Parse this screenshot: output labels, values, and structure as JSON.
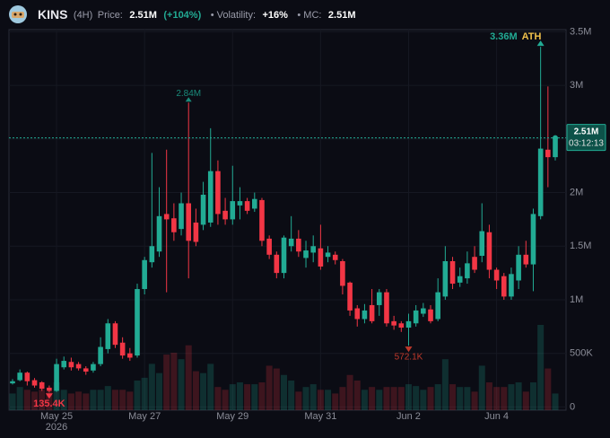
{
  "chart_data": {
    "type": "candlestick",
    "title": "KINS",
    "interval": "(4H)",
    "price_label": "Price:",
    "price": "2.51M",
    "change": "(+104%)",
    "volatility_label": "• Volatility:",
    "volatility": "+16%",
    "mc_label": "• MC:",
    "mc": "2.51M",
    "categories": [
      null,
      null,
      null,
      null,
      null,
      null,
      "May 25",
      null,
      null,
      null,
      null,
      null,
      null,
      null,
      null,
      null,
      null,
      null,
      "May 27",
      null,
      null,
      null,
      null,
      null,
      null,
      null,
      null,
      null,
      null,
      null,
      "May 29",
      null,
      null,
      null,
      null,
      null,
      null,
      null,
      null,
      null,
      null,
      null,
      "May 31",
      null,
      null,
      null,
      null,
      null,
      null,
      null,
      null,
      null,
      null,
      null,
      "Jun 2",
      null,
      null,
      null,
      null,
      null,
      null,
      null,
      null,
      null,
      null,
      null,
      "Jun 4",
      null,
      null,
      null,
      null,
      null,
      null,
      null,
      null
    ],
    "year_label": "2026",
    "open": [
      220000,
      250000,
      320000,
      250000,
      230000,
      180000,
      150000,
      370000,
      420000,
      400000,
      360000,
      340000,
      400000,
      540000,
      780000,
      600000,
      500000,
      480000,
      1100000,
      1350000,
      1450000,
      1800000,
      1760000,
      1660000,
      1900000,
      1720000,
      1700000,
      1720000,
      2200000,
      1830000,
      1750000,
      1880000,
      1920000,
      1850000,
      1930000,
      1570000,
      1420000,
      1250000,
      1500000,
      1570000,
      1390000,
      1440000,
      1480000,
      1400000,
      1420000,
      1360000,
      1160000,
      920000,
      820000,
      950000,
      950000,
      1070000,
      800000,
      780000,
      740000,
      780000,
      870000,
      910000,
      820000,
      1030000,
      1360000,
      1160000,
      1200000,
      1400000,
      1410000,
      1630000,
      1280000,
      1220000,
      1030000,
      1180000,
      1420000,
      1330000,
      1780000,
      2400000,
      2330000
    ],
    "high": [
      260000,
      350000,
      330000,
      270000,
      240000,
      200000,
      450000,
      470000,
      460000,
      420000,
      380000,
      420000,
      650000,
      820000,
      800000,
      650000,
      550000,
      1150000,
      1400000,
      2370000,
      2050000,
      2400000,
      1900000,
      2000000,
      2840000,
      1850000,
      2100000,
      2600000,
      2300000,
      1950000,
      2250000,
      2050000,
      1950000,
      2000000,
      1950000,
      1600000,
      1450000,
      1600000,
      1780000,
      1650000,
      1550000,
      1600000,
      1700000,
      1500000,
      1450000,
      1380000,
      1170000,
      950000,
      960000,
      1100000,
      1100000,
      1100000,
      850000,
      800000,
      870000,
      950000,
      970000,
      950000,
      1200000,
      1500000,
      1400000,
      1300000,
      1450000,
      1500000,
      1900000,
      1700000,
      1300000,
      1250000,
      1300000,
      1500000,
      1550000,
      1850000,
      3360000,
      2990000,
      2530000
    ],
    "low": [
      210000,
      240000,
      200000,
      180000,
      150000,
      135400,
      140000,
      350000,
      340000,
      340000,
      300000,
      320000,
      380000,
      500000,
      550000,
      450000,
      430000,
      460000,
      1050000,
      1300000,
      1400000,
      1070000,
      1550000,
      1600000,
      1200000,
      1500000,
      1650000,
      1680000,
      1700000,
      1700000,
      1700000,
      1750000,
      1800000,
      1820000,
      1500000,
      1380000,
      1200000,
      1200000,
      1450000,
      1400000,
      1300000,
      1350000,
      1280000,
      1350000,
      1330000,
      1050000,
      850000,
      750000,
      780000,
      780000,
      850000,
      750000,
      720000,
      700000,
      572100,
      750000,
      840000,
      780000,
      800000,
      1000000,
      1100000,
      1120000,
      1150000,
      1250000,
      1350000,
      1200000,
      1100000,
      1000000,
      1000000,
      1100000,
      1300000,
      1080000,
      1750000,
      2050000,
      2300000
    ],
    "close": [
      240000,
      320000,
      240000,
      200000,
      170000,
      150000,
      400000,
      430000,
      370000,
      360000,
      330000,
      400000,
      560000,
      780000,
      580000,
      480000,
      460000,
      1100000,
      1370000,
      1500000,
      1780000,
      1750000,
      1630000,
      1900000,
      1550000,
      1540000,
      1980000,
      2200000,
      1800000,
      1750000,
      1920000,
      1920000,
      1830000,
      1940000,
      1550000,
      1420000,
      1250000,
      1580000,
      1570000,
      1450000,
      1460000,
      1500000,
      1310000,
      1440000,
      1370000,
      1130000,
      900000,
      820000,
      900000,
      800000,
      1070000,
      780000,
      760000,
      740000,
      800000,
      900000,
      920000,
      800000,
      1070000,
      1360000,
      1150000,
      1220000,
      1340000,
      1280000,
      1640000,
      1280000,
      1180000,
      1030000,
      1240000,
      1420000,
      1330000,
      1800000,
      2410000,
      2330000,
      2510000
    ],
    "volume": [
      18,
      25,
      22,
      20,
      22,
      20,
      30,
      22,
      18,
      20,
      18,
      22,
      22,
      26,
      22,
      22,
      20,
      32,
      35,
      50,
      40,
      60,
      62,
      55,
      70,
      42,
      40,
      50,
      25,
      22,
      28,
      30,
      28,
      28,
      30,
      48,
      45,
      38,
      32,
      20,
      25,
      28,
      22,
      22,
      18,
      25,
      38,
      32,
      22,
      25,
      22,
      25,
      25,
      25,
      28,
      26,
      22,
      25,
      28,
      55,
      28,
      25,
      25,
      20,
      48,
      30,
      25,
      25,
      28,
      30,
      20,
      30,
      92,
      45,
      18
    ],
    "up_color": "#22ab94",
    "down_color": "#f23645",
    "ylim": [
      -30000,
      3520000
    ],
    "yticks": [
      0,
      {
        "value": 500000,
        "label": "500K"
      },
      {
        "value": 1000000,
        "label": "1M"
      },
      {
        "value": 1500000,
        "label": "1.5M"
      },
      {
        "value": 2000000,
        "label": "2M"
      },
      {
        "value": 2500000,
        "label": "2.5M"
      },
      {
        "value": 3000000,
        "label": "3M"
      },
      {
        "value": 3500000,
        "label": "3.5M"
      }
    ],
    "grid": true,
    "ath": {
      "value": 3360000,
      "label": "3.36M",
      "tag": "ATH"
    },
    "high_label": {
      "value": 2840000,
      "label": "2.84M"
    },
    "low_labels": [
      {
        "value": 135400,
        "label": "135.4K"
      },
      {
        "value": 572100,
        "label": "572.1K"
      }
    ],
    "last_price": {
      "value": 2510000,
      "label": "2.51M",
      "countdown": "03:12:13"
    }
  }
}
